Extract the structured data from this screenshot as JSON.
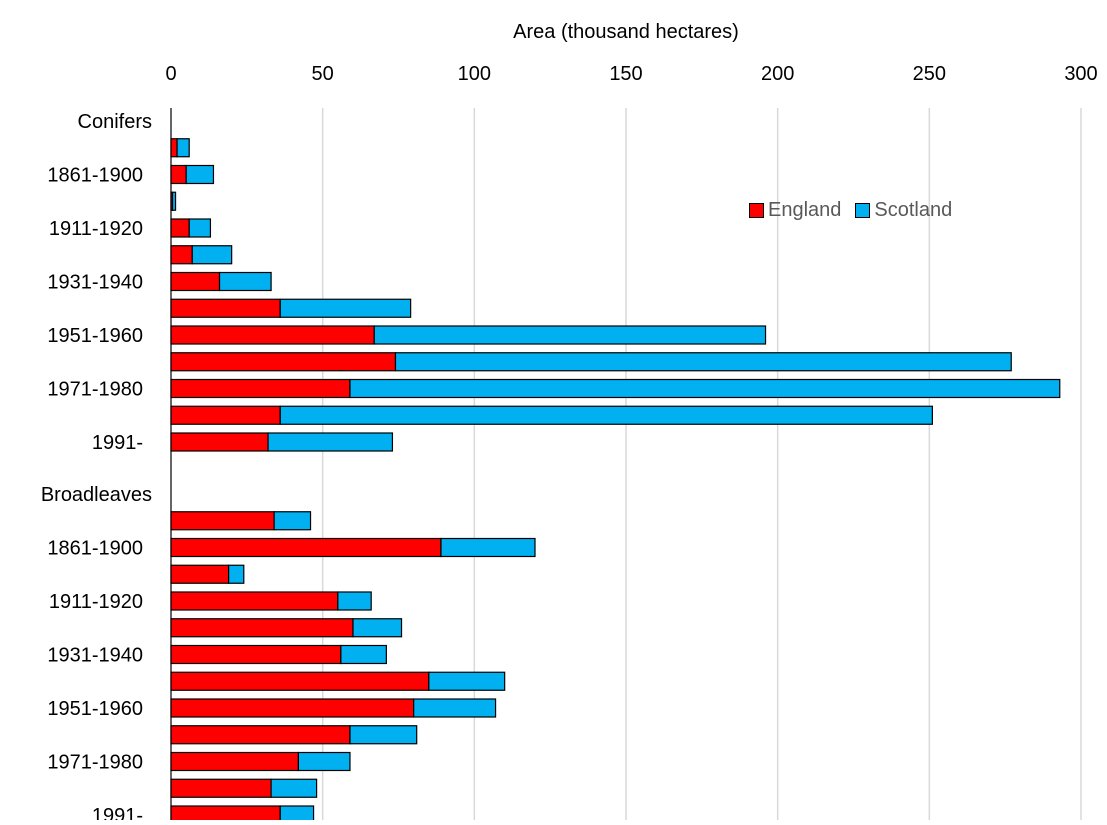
{
  "chart_data": {
    "type": "bar",
    "orientation": "horizontal",
    "stacked": true,
    "xlabel": "Area (thousand hectares)",
    "xlim": [
      0,
      300
    ],
    "xticks": [
      "0",
      "50",
      "100",
      "150",
      "200",
      "250",
      "300"
    ],
    "grid": true,
    "legend_position": "top-right",
    "groups": [
      {
        "label": "Conifers",
        "rows": [
          {
            "label": "",
            "england": 2,
            "scotland": 4
          },
          {
            "label": "1861-1900",
            "england": 5,
            "scotland": 9
          },
          {
            "label": "",
            "england": 0.5,
            "scotland": 1
          },
          {
            "label": "1911-1920",
            "england": 6,
            "scotland": 7
          },
          {
            "label": "",
            "england": 7,
            "scotland": 13
          },
          {
            "label": "1931-1940",
            "england": 16,
            "scotland": 17
          },
          {
            "label": "",
            "england": 36,
            "scotland": 43
          },
          {
            "label": "1951-1960",
            "england": 67,
            "scotland": 129
          },
          {
            "label": "",
            "england": 74,
            "scotland": 203
          },
          {
            "label": "1971-1980",
            "england": 59,
            "scotland": 234
          },
          {
            "label": "",
            "england": 36,
            "scotland": 215
          },
          {
            "label": "1991-",
            "england": 32,
            "scotland": 41
          }
        ]
      },
      {
        "label": "Broadleaves",
        "rows": [
          {
            "label": "",
            "england": 34,
            "scotland": 12
          },
          {
            "label": "1861-1900",
            "england": 89,
            "scotland": 31
          },
          {
            "label": "",
            "england": 19,
            "scotland": 5
          },
          {
            "label": "1911-1920",
            "england": 55,
            "scotland": 11
          },
          {
            "label": "",
            "england": 60,
            "scotland": 16
          },
          {
            "label": "1931-1940",
            "england": 56,
            "scotland": 15
          },
          {
            "label": "",
            "england": 85,
            "scotland": 25
          },
          {
            "label": "1951-1960",
            "england": 80,
            "scotland": 27
          },
          {
            "label": "",
            "england": 59,
            "scotland": 22
          },
          {
            "label": "1971-1980",
            "england": 42,
            "scotland": 17
          },
          {
            "label": "",
            "england": 33,
            "scotland": 15
          },
          {
            "label": "1991-",
            "england": 36,
            "scotland": 11
          }
        ]
      }
    ],
    "series": [
      {
        "name": "England",
        "key": "england",
        "color": "#ff0000"
      },
      {
        "name": "Scotland",
        "key": "scotland",
        "color": "#00b0f0"
      }
    ]
  }
}
